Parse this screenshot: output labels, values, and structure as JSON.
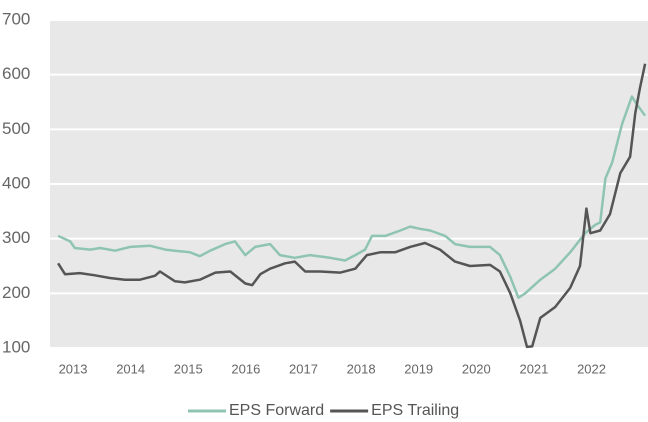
{
  "chart_data": {
    "type": "line",
    "xlim": [
      2012.6,
      2022.98
    ],
    "xticks": [
      2013,
      2014,
      2015,
      2016,
      2017,
      2018,
      2019,
      2020,
      2021,
      2022
    ],
    "ylim": [
      100,
      700
    ],
    "yticks": [
      100,
      200,
      300,
      400,
      500,
      600,
      700
    ],
    "grid": true,
    "legend": "bottom",
    "series": [
      {
        "name": "EPS Forward",
        "color": "#8fc4b3",
        "x": [
          2012.74,
          2012.95,
          2013.03,
          2013.3,
          2013.47,
          2013.73,
          2013.99,
          2014.34,
          2014.6,
          2014.77,
          2015.03,
          2015.2,
          2015.38,
          2015.64,
          2015.81,
          2015.99,
          2016.16,
          2016.42,
          2016.59,
          2016.85,
          2017.11,
          2017.46,
          2017.72,
          2017.9,
          2018.07,
          2018.19,
          2018.42,
          2018.68,
          2018.85,
          2019.02,
          2019.2,
          2019.46,
          2019.63,
          2019.89,
          2020.24,
          2020.41,
          2020.59,
          2020.73,
          2020.85,
          2021.11,
          2021.37,
          2021.63,
          2021.89,
          2022.06,
          2022.15,
          2022.24,
          2022.36,
          2022.53,
          2022.7,
          2022.79,
          2022.93
        ],
        "values": [
          305,
          295,
          283,
          280,
          283,
          278,
          285,
          287,
          280,
          278,
          275,
          268,
          278,
          290,
          295,
          270,
          285,
          290,
          270,
          265,
          270,
          265,
          260,
          270,
          280,
          305,
          305,
          315,
          322,
          318,
          315,
          305,
          290,
          285,
          285,
          270,
          230,
          192,
          200,
          225,
          245,
          275,
          310,
          325,
          330,
          410,
          440,
          510,
          560,
          545,
          525
        ]
      },
      {
        "name": "EPS Trailing",
        "color": "#555555",
        "x": [
          2012.74,
          2012.86,
          2013.12,
          2013.38,
          2013.64,
          2013.9,
          2014.16,
          2014.42,
          2014.51,
          2014.77,
          2014.94,
          2015.2,
          2015.47,
          2015.73,
          2015.99,
          2016.11,
          2016.25,
          2016.42,
          2016.68,
          2016.85,
          2017.03,
          2017.29,
          2017.64,
          2017.9,
          2018.1,
          2018.33,
          2018.59,
          2018.85,
          2019.11,
          2019.37,
          2019.63,
          2019.89,
          2020.24,
          2020.41,
          2020.59,
          2020.76,
          2020.88,
          2020.97,
          2021.11,
          2021.37,
          2021.63,
          2021.8,
          2021.91,
          2021.98,
          2022.15,
          2022.32,
          2022.5,
          2022.67,
          2022.76,
          2022.84,
          2022.93
        ],
        "values": [
          255,
          235,
          237,
          233,
          228,
          225,
          225,
          232,
          240,
          222,
          220,
          225,
          238,
          240,
          218,
          215,
          235,
          245,
          255,
          258,
          240,
          240,
          238,
          245,
          270,
          275,
          275,
          285,
          292,
          280,
          258,
          250,
          252,
          240,
          200,
          150,
          102,
          103,
          155,
          175,
          210,
          250,
          355,
          310,
          315,
          345,
          420,
          450,
          530,
          575,
          620
        ]
      }
    ]
  }
}
